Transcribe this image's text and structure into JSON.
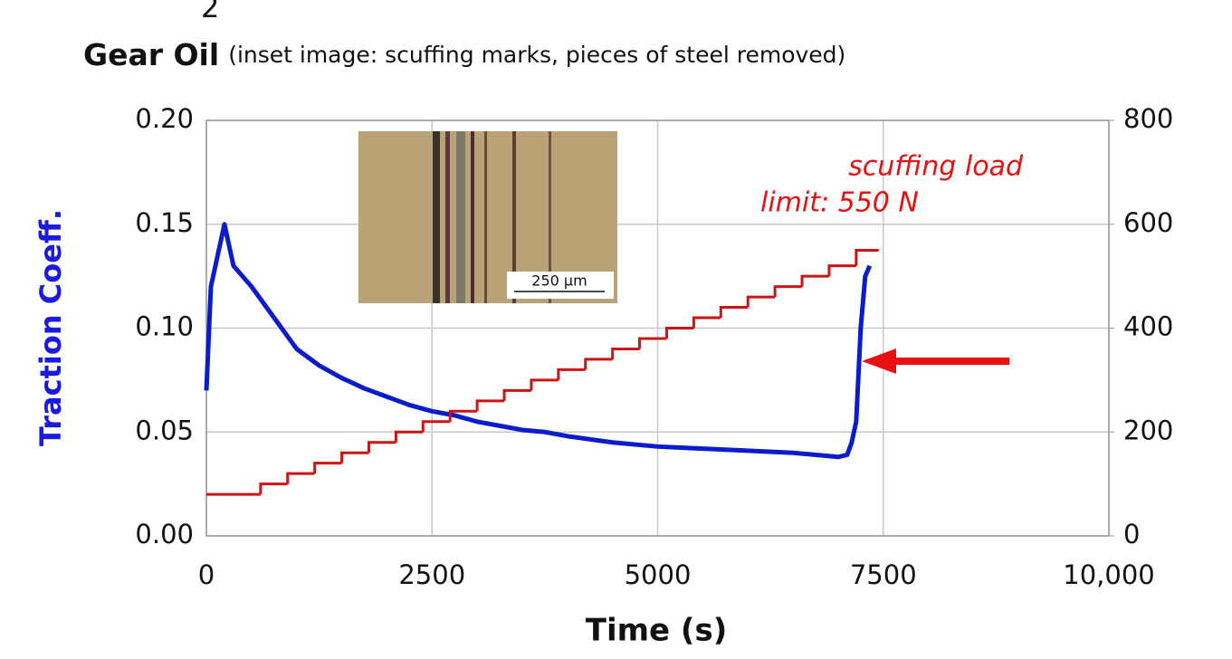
{
  "chart_data": {
    "type": "line",
    "title": "Gear Oil",
    "subtitle": "(inset image: scuffing marks, pieces of steel removed)",
    "header_fragment": "2",
    "x_label": "Time (s)",
    "y_label": "Traction Coeff.",
    "annotations": [
      "scuffing load",
      "limit: 550 N"
    ],
    "inset_scale_label": "250 µm",
    "xlim": [
      0,
      10000
    ],
    "xticks": [
      0,
      2500,
      5000,
      7500,
      {
        "value": 10000,
        "label": "10,000"
      }
    ],
    "ylim": [
      0,
      0.2
    ],
    "yticks": [
      {
        "value": 0,
        "label": "0.00"
      },
      {
        "value": 0.05,
        "label": "0.05"
      },
      {
        "value": 0.1,
        "label": "0.10"
      },
      {
        "value": 0.15,
        "label": "0.15"
      },
      {
        "value": 0.2,
        "label": "0.20"
      }
    ],
    "y2lim": [
      0,
      800
    ],
    "y2ticks": [
      0,
      200,
      400,
      600,
      800
    ],
    "grid": true,
    "series": [
      {
        "color": "#0a1ccc",
        "x": [
          0,
          50,
          100,
          200,
          300,
          500,
          750,
          1000,
          1250,
          1500,
          1750,
          2000,
          2250,
          2500,
          2750,
          3000,
          3250,
          3500,
          3750,
          4000,
          4500,
          5000,
          5500,
          6000,
          6500,
          7000,
          7100,
          7150,
          7200,
          7250,
          7300,
          7350
        ],
        "values": [
          0.07,
          0.12,
          0.13,
          0.15,
          0.13,
          0.12,
          0.105,
          0.09,
          0.082,
          0.076,
          0.071,
          0.067,
          0.063,
          0.06,
          0.058,
          0.055,
          0.053,
          0.051,
          0.05,
          0.048,
          0.045,
          0.043,
          0.042,
          0.041,
          0.04,
          0.038,
          0.039,
          0.045,
          0.055,
          0.1,
          0.125,
          0.13
        ]
      },
      {
        "color": "#cc1414",
        "axis": "y2",
        "step": true,
        "x": [
          0,
          600,
          900,
          1200,
          1500,
          1800,
          2100,
          2400,
          2700,
          3000,
          3300,
          3600,
          3900,
          4200,
          4500,
          4800,
          5100,
          5400,
          5700,
          6000,
          6300,
          6600,
          6900,
          7200,
          7450
        ],
        "values": [
          80,
          100,
          120,
          140,
          160,
          180,
          200,
          220,
          240,
          260,
          280,
          300,
          320,
          340,
          360,
          380,
          400,
          420,
          440,
          460,
          480,
          500,
          520,
          550,
          550
        ]
      }
    ]
  }
}
